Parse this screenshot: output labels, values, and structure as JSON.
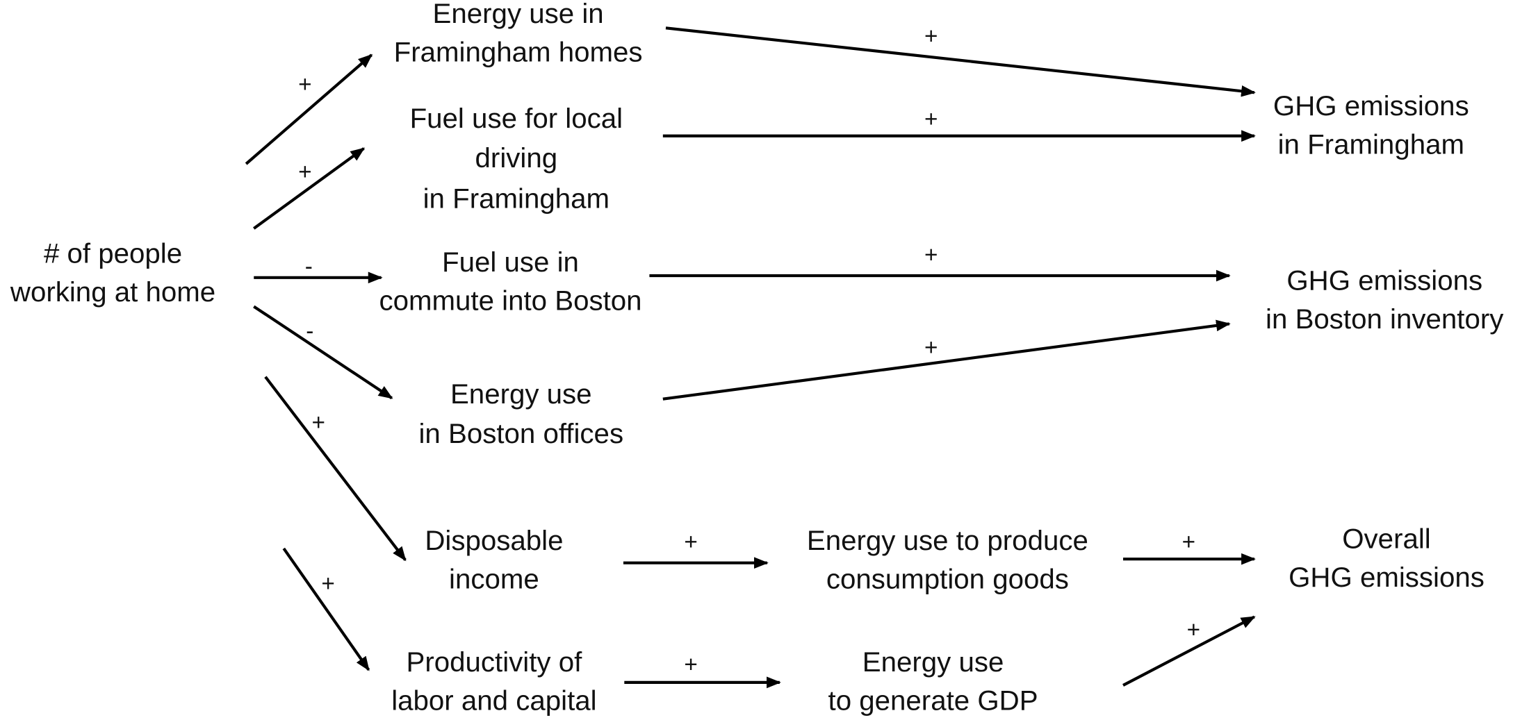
{
  "nodes": [
    {
      "lines": [
        "# of people",
        "working at home"
      ]
    },
    {
      "lines": [
        "Energy use in",
        "Framingham homes"
      ]
    },
    {
      "lines": [
        "Fuel use for local",
        "driving",
        "in Framingham"
      ]
    },
    {
      "lines": [
        "Fuel use in",
        "commute into Boston"
      ]
    },
    {
      "lines": [
        "Energy use",
        "in Boston offices"
      ]
    },
    {
      "lines": [
        "Disposable",
        "income"
      ]
    },
    {
      "lines": [
        "Energy use to produce",
        "consumption goods"
      ]
    },
    {
      "lines": [
        "Productivity of",
        "labor and capital"
      ]
    },
    {
      "lines": [
        "Energy use",
        "to generate GDP"
      ]
    },
    {
      "lines": [
        "GHG emissions",
        "in Framingham"
      ]
    },
    {
      "lines": [
        "GHG emissions",
        "in Boston inventory"
      ]
    },
    {
      "lines": [
        "Overall",
        "GHG emissions"
      ]
    }
  ],
  "edges": [
    {
      "sign": "+"
    },
    {
      "sign": "+"
    },
    {
      "sign": "-"
    },
    {
      "sign": "-"
    },
    {
      "sign": "+"
    },
    {
      "sign": "+"
    },
    {
      "sign": "+"
    },
    {
      "sign": "+"
    },
    {
      "sign": "+"
    },
    {
      "sign": "+"
    },
    {
      "sign": "+"
    },
    {
      "sign": "+"
    },
    {
      "sign": "+"
    },
    {
      "sign": "+"
    }
  ]
}
